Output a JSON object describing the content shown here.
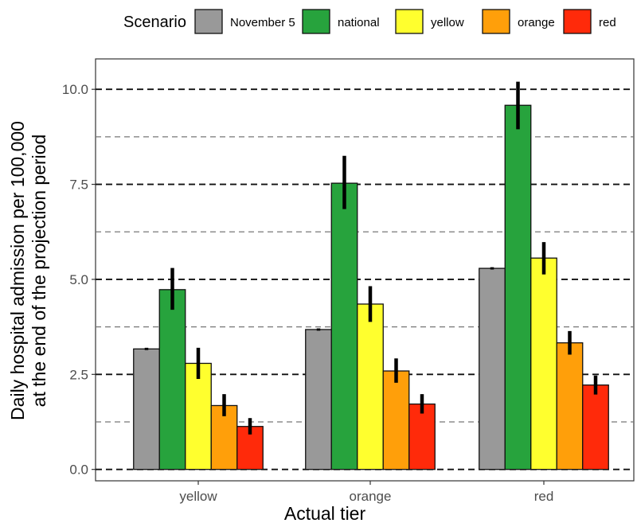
{
  "legend": {
    "title": "Scenario",
    "items": [
      {
        "label": "November 5",
        "color": "#999999"
      },
      {
        "label": "national",
        "color": "#27a33d"
      },
      {
        "label": "yellow",
        "color": "#ffff2e"
      },
      {
        "label": "orange",
        "color": "#ff9f0a"
      },
      {
        "label": "red",
        "color": "#ff2a0a"
      }
    ]
  },
  "chart_data": {
    "type": "bar",
    "title": "",
    "xlabel": "Actual tier",
    "ylabel": [
      "Daily hospital admission per 100,000",
      "at the end of the projection period"
    ],
    "categories": [
      "yellow",
      "orange",
      "red"
    ],
    "ylim": [
      -0.3,
      10.8
    ],
    "y_ticks": [
      0.0,
      2.5,
      5.0,
      7.5,
      10.0
    ],
    "y_tick_labels": [
      "0.0",
      "2.5",
      "5.0",
      "7.5",
      "10.0"
    ],
    "grid": {
      "major": [
        0.0,
        2.5,
        5.0,
        7.5,
        10.0
      ],
      "minor": [
        1.25,
        3.75,
        6.25,
        8.75
      ],
      "style": "dashed horizontal"
    },
    "legend_position": "top",
    "series": [
      {
        "name": "November 5",
        "color": "#999999",
        "values": [
          3.17,
          3.68,
          5.29
        ],
        "err_low": [
          3.14,
          3.65,
          5.26
        ],
        "err_high": [
          3.2,
          3.71,
          5.32
        ]
      },
      {
        "name": "national",
        "color": "#27a33d",
        "values": [
          4.73,
          7.53,
          9.58
        ],
        "err_low": [
          4.2,
          6.85,
          8.95
        ],
        "err_high": [
          5.3,
          8.25,
          10.2
        ]
      },
      {
        "name": "yellow",
        "color": "#ffff2e",
        "values": [
          2.79,
          4.35,
          5.56
        ],
        "err_low": [
          2.38,
          3.88,
          5.13
        ],
        "err_high": [
          3.2,
          4.82,
          5.98
        ]
      },
      {
        "name": "orange",
        "color": "#ff9f0a",
        "values": [
          1.68,
          2.59,
          3.33
        ],
        "err_low": [
          1.4,
          2.28,
          3.02
        ],
        "err_high": [
          1.98,
          2.92,
          3.64
        ]
      },
      {
        "name": "red",
        "color": "#ff2a0a",
        "values": [
          1.13,
          1.72,
          2.22
        ],
        "err_low": [
          0.92,
          1.47,
          1.97
        ],
        "err_high": [
          1.35,
          1.98,
          2.47
        ]
      }
    ]
  }
}
